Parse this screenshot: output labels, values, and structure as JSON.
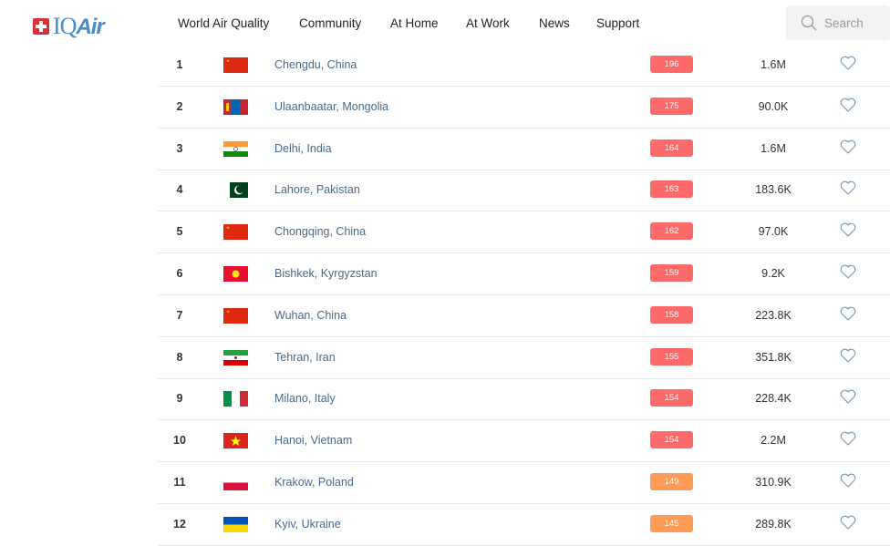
{
  "brand": {
    "name": "IQAir",
    "prefix": "IQ",
    "suffix": "Air"
  },
  "nav": [
    "World Air Quality",
    "Community",
    "At Home",
    "At Work",
    "News",
    "Support"
  ],
  "search": {
    "placeholder": "Search"
  },
  "colors": {
    "unhealthy": "#fe6a69",
    "sensitive": "#fe9b57",
    "link": "#4a6a8a",
    "brand": "#4c8cc4"
  },
  "rows": [
    {
      "rank": "1",
      "city": "Chengdu, China",
      "aqi": "196",
      "followers": "1.6M",
      "flag": "cn"
    },
    {
      "rank": "2",
      "city": "Ulaanbaatar, Mongolia",
      "aqi": "175",
      "followers": "90.0K",
      "flag": "mn"
    },
    {
      "rank": "3",
      "city": "Delhi, India",
      "aqi": "164",
      "followers": "1.6M",
      "flag": "in"
    },
    {
      "rank": "4",
      "city": "Lahore, Pakistan",
      "aqi": "163",
      "followers": "183.6K",
      "flag": "pk"
    },
    {
      "rank": "5",
      "city": "Chongqing, China",
      "aqi": "162",
      "followers": "97.0K",
      "flag": "cn"
    },
    {
      "rank": "6",
      "city": "Bishkek, Kyrgyzstan",
      "aqi": "159",
      "followers": "9.2K",
      "flag": "kg"
    },
    {
      "rank": "7",
      "city": "Wuhan, China",
      "aqi": "158",
      "followers": "223.8K",
      "flag": "cn"
    },
    {
      "rank": "8",
      "city": "Tehran, Iran",
      "aqi": "155",
      "followers": "351.8K",
      "flag": "ir"
    },
    {
      "rank": "9",
      "city": "Milano, Italy",
      "aqi": "154",
      "followers": "228.4K",
      "flag": "it"
    },
    {
      "rank": "10",
      "city": "Hanoi, Vietnam",
      "aqi": "154",
      "followers": "2.2M",
      "flag": "vn"
    },
    {
      "rank": "11",
      "city": "Krakow, Poland",
      "aqi": "149",
      "followers": "310.9K",
      "flag": "pl"
    },
    {
      "rank": "12",
      "city": "Kyiv, Ukraine",
      "aqi": "145",
      "followers": "289.8K",
      "flag": "ua"
    }
  ]
}
